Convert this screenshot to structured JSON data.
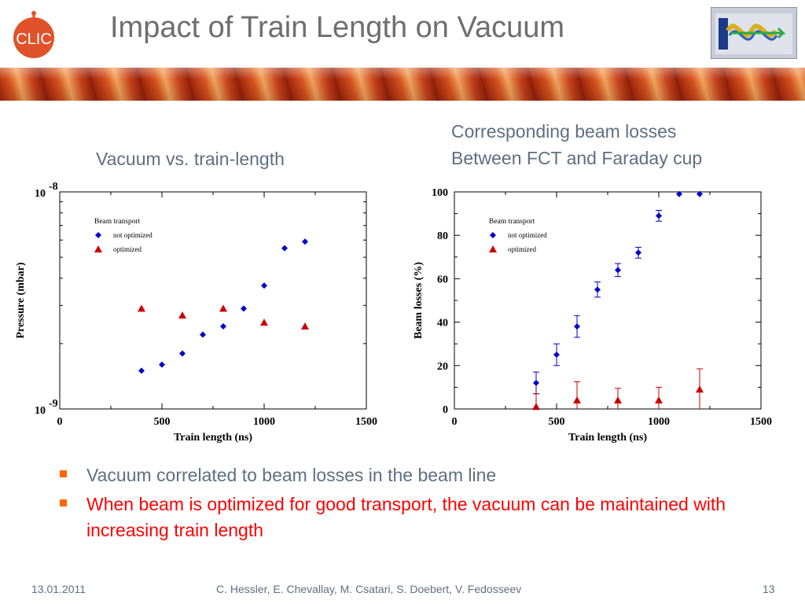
{
  "slide": {
    "title": "Impact of Train Length on Vacuum",
    "caption_left": "Vacuum vs. train-length",
    "caption_right_line1": "Corresponding beam losses",
    "caption_right_line2": "Between FCT and Faraday cup",
    "logo_left_text": "CLIC",
    "bullets": [
      {
        "text": "Vacuum correlated to beam losses in the beam line",
        "color": "#5f6f80"
      },
      {
        "text": "When beam is optimized for good transport, the vacuum can be maintained with increasing train length",
        "color": "#ff0000"
      }
    ],
    "footer": {
      "date": "13.01.2011",
      "authors": "C. Hessler, E. Chevallay, M. Csatari, S. Doebert, V. Fedosseev",
      "page": "13"
    },
    "colors": {
      "title": "#6e6e6e",
      "caption": "#5f6f80",
      "bullet_marker": "#ff6600",
      "banner": "#c74718",
      "series_not_optimized": "#0000cc",
      "series_optimized": "#cc0000"
    }
  },
  "chart_data": [
    {
      "type": "scatter",
      "xlabel": "Train length (ns)",
      "ylabel": "Pressure (mbar)",
      "xlim": [
        0,
        1500
      ],
      "ylim": [
        1e-09,
        1e-08
      ],
      "yscale": "log",
      "xticks": [
        0,
        500,
        1000,
        1500
      ],
      "yticks": [
        {
          "value": 1e-09,
          "base": "10",
          "exp": "-9"
        },
        {
          "value": 1e-08,
          "base": "10",
          "exp": "-8"
        }
      ],
      "grid": false,
      "legend": {
        "title": "Beam transport",
        "position": "top-left"
      },
      "series": [
        {
          "name": "not optimized",
          "marker": "diamond",
          "color": "#0000cc",
          "x": [
            400,
            500,
            600,
            700,
            800,
            900,
            1000,
            1100,
            1200
          ],
          "y": [
            1.5e-09,
            1.6e-09,
            1.8e-09,
            2.2e-09,
            2.4e-09,
            2.9e-09,
            3.7e-09,
            5.5e-09,
            5.9e-09
          ]
        },
        {
          "name": "optimized",
          "marker": "triangle",
          "color": "#cc0000",
          "x": [
            400,
            600,
            800,
            1000,
            1200
          ],
          "y": [
            2.9e-09,
            2.7e-09,
            2.9e-09,
            2.5e-09,
            2.4e-09
          ]
        }
      ]
    },
    {
      "type": "scatter",
      "xlabel": "Train length (ns)",
      "ylabel": "Beam losses (%)",
      "xlim": [
        0,
        1500
      ],
      "ylim": [
        0,
        100
      ],
      "xticks": [
        0,
        500,
        1000,
        1500
      ],
      "yticks": [
        0,
        20,
        40,
        60,
        80,
        100
      ],
      "grid": false,
      "legend": {
        "title": "Beam transport",
        "position": "top-left"
      },
      "series": [
        {
          "name": "not optimized",
          "marker": "diamond",
          "color": "#0000cc",
          "x": [
            400,
            500,
            600,
            700,
            800,
            900,
            1000,
            1100,
            1200
          ],
          "y": [
            12,
            25,
            38,
            55,
            64,
            72,
            89,
            99,
            99
          ],
          "err": [
            5,
            5,
            5,
            3.5,
            3,
            2.5,
            2.5,
            0,
            0
          ]
        },
        {
          "name": "optimized",
          "marker": "triangle",
          "color": "#cc0000",
          "x": [
            400,
            600,
            800,
            1000,
            1200
          ],
          "y": [
            1,
            4,
            4,
            4,
            9
          ],
          "err": [
            6,
            8.5,
            5.5,
            6,
            9.5
          ]
        }
      ]
    }
  ]
}
